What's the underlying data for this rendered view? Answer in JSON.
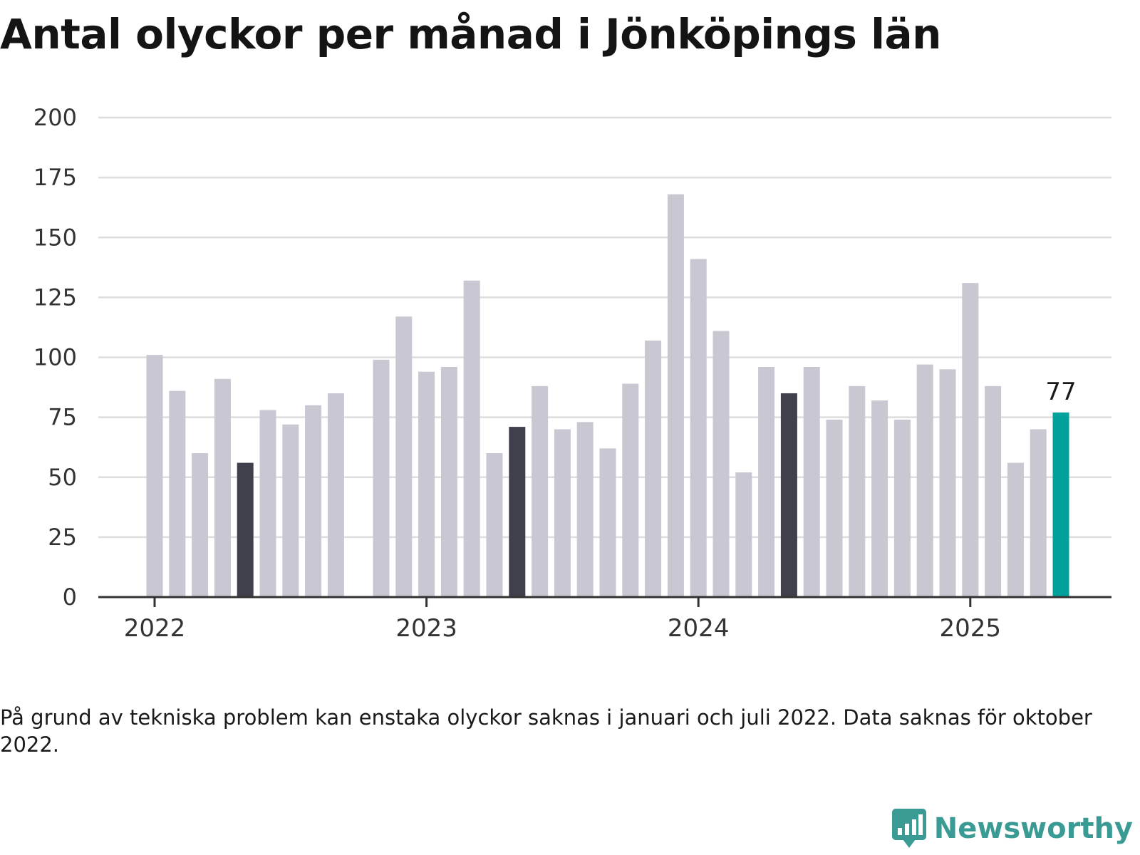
{
  "title": "Antal olyckor per månad i Jönköpings län",
  "footnote": "På grund av tekniska problem kan enstaka olyckor saknas i januari och juli 2022. Data saknas för oktober 2022.",
  "brand": {
    "name": "Newsworthy",
    "icon": "newsworthy-logo-icon"
  },
  "colors": {
    "default": "#c8c7d2",
    "highlight": "#403f4c",
    "latest": "#00a19a",
    "grid": "#dddddd",
    "axis": "#333333"
  },
  "chart_data": {
    "type": "bar",
    "ylim": [
      0,
      200
    ],
    "yticks": [
      0,
      25,
      50,
      75,
      100,
      125,
      150,
      175,
      200
    ],
    "xticks": [
      {
        "label": "2022",
        "month": "2022-01"
      },
      {
        "label": "2023",
        "month": "2023-01"
      },
      {
        "label": "2024",
        "month": "2024-01"
      },
      {
        "label": "2025",
        "month": "2025-01"
      }
    ],
    "grid": true,
    "bars": [
      {
        "month": "2022-01",
        "value": 101
      },
      {
        "month": "2022-02",
        "value": 86
      },
      {
        "month": "2022-03",
        "value": 60
      },
      {
        "month": "2022-04",
        "value": 91
      },
      {
        "month": "2022-05",
        "value": 56,
        "style": "highlight"
      },
      {
        "month": "2022-06",
        "value": 78
      },
      {
        "month": "2022-07",
        "value": 72
      },
      {
        "month": "2022-08",
        "value": 80
      },
      {
        "month": "2022-09",
        "value": 85
      },
      {
        "month": "2022-11",
        "value": 99
      },
      {
        "month": "2022-12",
        "value": 117
      },
      {
        "month": "2023-01",
        "value": 94
      },
      {
        "month": "2023-02",
        "value": 96
      },
      {
        "month": "2023-03",
        "value": 132
      },
      {
        "month": "2023-04",
        "value": 60
      },
      {
        "month": "2023-05",
        "value": 71,
        "style": "highlight"
      },
      {
        "month": "2023-06",
        "value": 88
      },
      {
        "month": "2023-07",
        "value": 70
      },
      {
        "month": "2023-08",
        "value": 73
      },
      {
        "month": "2023-09",
        "value": 62
      },
      {
        "month": "2023-10",
        "value": 89
      },
      {
        "month": "2023-11",
        "value": 107
      },
      {
        "month": "2023-12",
        "value": 168
      },
      {
        "month": "2024-01",
        "value": 141
      },
      {
        "month": "2024-02",
        "value": 111
      },
      {
        "month": "2024-03",
        "value": 52
      },
      {
        "month": "2024-04",
        "value": 96
      },
      {
        "month": "2024-05",
        "value": 85,
        "style": "highlight"
      },
      {
        "month": "2024-06",
        "value": 96
      },
      {
        "month": "2024-07",
        "value": 74
      },
      {
        "month": "2024-08",
        "value": 88
      },
      {
        "month": "2024-09",
        "value": 82
      },
      {
        "month": "2024-10",
        "value": 74
      },
      {
        "month": "2024-11",
        "value": 97
      },
      {
        "month": "2024-12",
        "value": 95
      },
      {
        "month": "2025-01",
        "value": 131
      },
      {
        "month": "2025-02",
        "value": 88
      },
      {
        "month": "2025-03",
        "value": 56
      },
      {
        "month": "2025-04",
        "value": 70
      },
      {
        "month": "2025-05",
        "value": 77,
        "style": "latest",
        "label": "77"
      }
    ]
  }
}
